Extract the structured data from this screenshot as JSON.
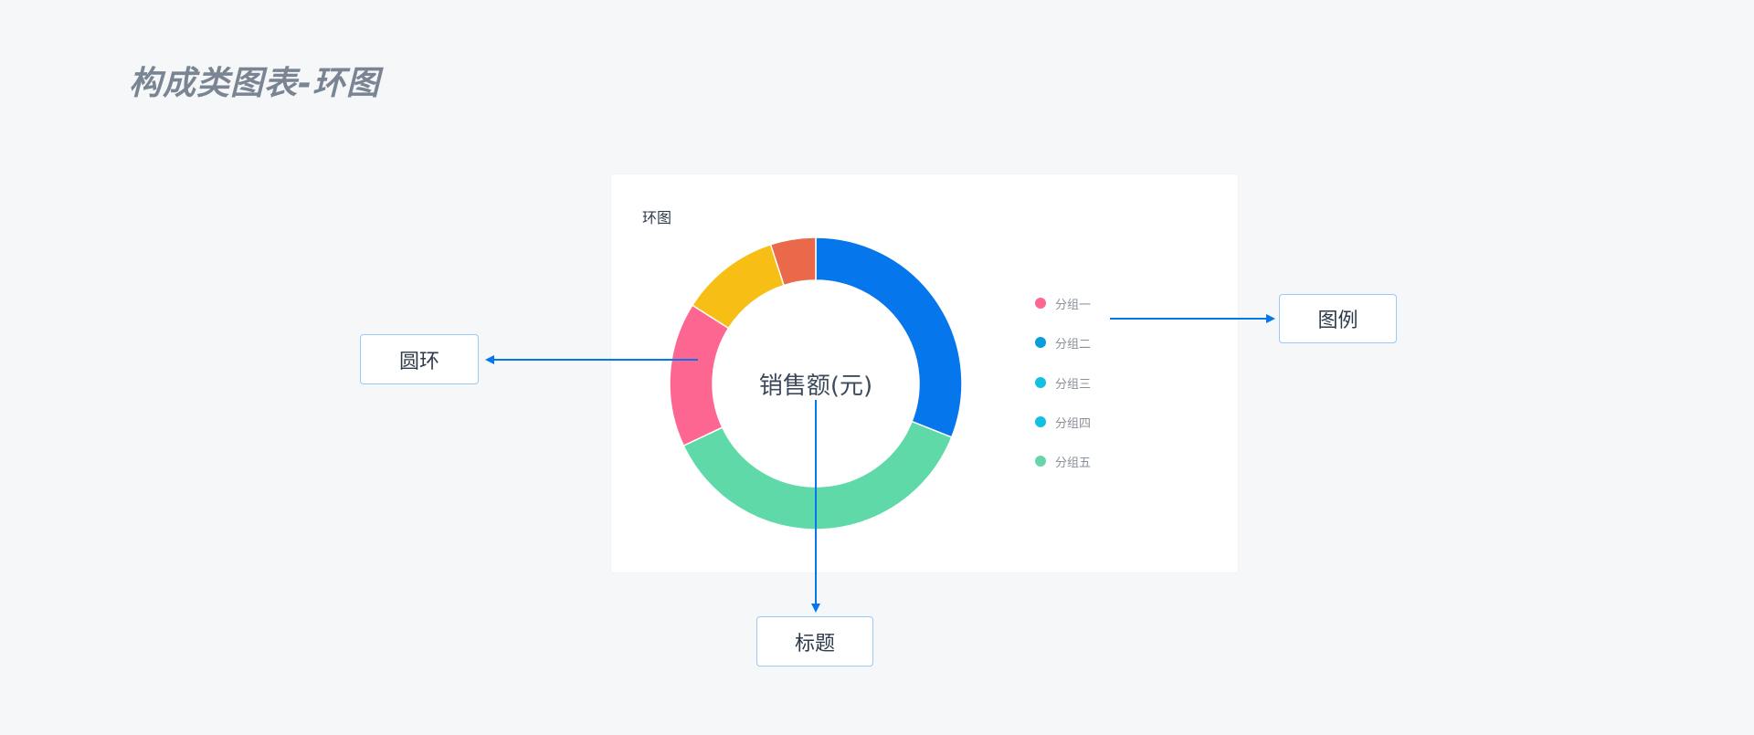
{
  "page_title": "构成类图表-环图",
  "card": {
    "title": "环图"
  },
  "chart_data": {
    "type": "pie",
    "donut": true,
    "title": "环图",
    "center_label": "销售额(元)",
    "slices": [
      {
        "value": 31,
        "color": "#0676ed"
      },
      {
        "value": 37,
        "color": "#5fd9a8"
      },
      {
        "value": 16,
        "color": "#fd6690"
      },
      {
        "value": 11,
        "color": "#f7be16"
      },
      {
        "value": 5,
        "color": "#e9694a"
      }
    ],
    "legend": {
      "placement": "right",
      "items": [
        {
          "label": "分组一",
          "color": "#fd6690"
        },
        {
          "label": "分组二",
          "color": "#089ddc"
        },
        {
          "label": "分组三",
          "color": "#12c0e0"
        },
        {
          "label": "分组四",
          "color": "#12c0e0"
        },
        {
          "label": "分组五",
          "color": "#67d5aa"
        }
      ]
    }
  },
  "annotations": {
    "ring": "圆环",
    "legend": "图例",
    "title": "标题",
    "arrow_color": "#0676ed"
  }
}
